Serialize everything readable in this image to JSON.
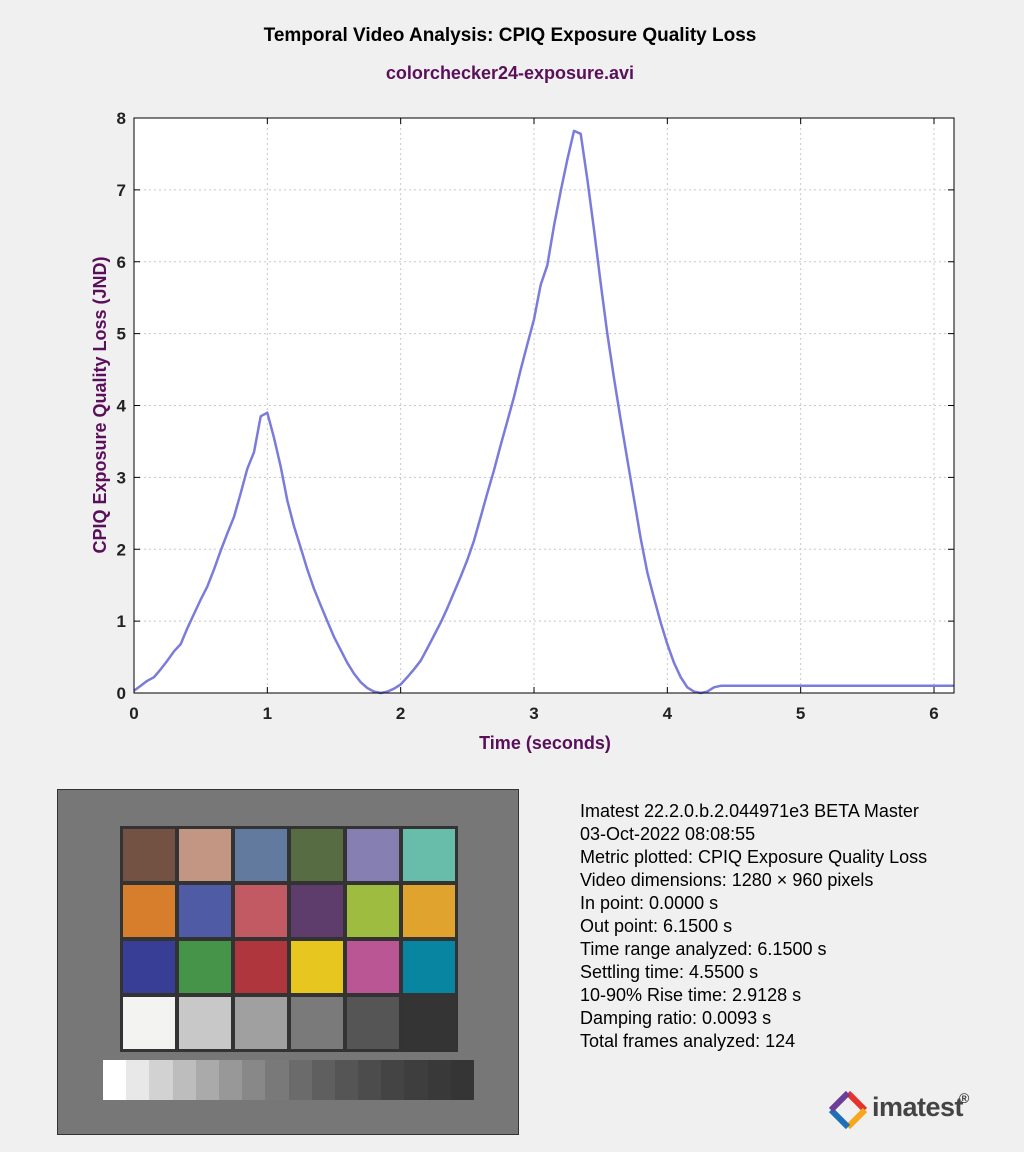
{
  "chart_data": {
    "type": "line",
    "title": "Temporal Video Analysis: CPIQ Exposure Quality Loss",
    "subtitle": "colorchecker24-exposure.avi",
    "xlabel": "Time (seconds)",
    "ylabel": "CPIQ Exposure Quality Loss (JND)",
    "xlim": [
      0,
      6.15
    ],
    "ylim": [
      0,
      8
    ],
    "xticks": [
      "0",
      "1",
      "2",
      "3",
      "4",
      "5",
      "6"
    ],
    "yticks": [
      "0",
      "1",
      "2",
      "3",
      "4",
      "5",
      "6",
      "7",
      "8"
    ],
    "grid": true,
    "series": [
      {
        "color": "#7b7bdc",
        "x": [
          0,
          0.05,
          0.1,
          0.15,
          0.2,
          0.25,
          0.3,
          0.35,
          0.4,
          0.45,
          0.5,
          0.55,
          0.6,
          0.65,
          0.7,
          0.75,
          0.8,
          0.85,
          0.9,
          0.95,
          1.0,
          1.05,
          1.1,
          1.15,
          1.2,
          1.25,
          1.3,
          1.35,
          1.4,
          1.45,
          1.5,
          1.55,
          1.6,
          1.65,
          1.7,
          1.75,
          1.8,
          1.85,
          1.9,
          1.95,
          2.0,
          2.05,
          2.1,
          2.15,
          2.2,
          2.25,
          2.3,
          2.35,
          2.4,
          2.45,
          2.5,
          2.55,
          2.6,
          2.65,
          2.7,
          2.75,
          2.8,
          2.85,
          2.9,
          2.95,
          3.0,
          3.05,
          3.1,
          3.15,
          3.2,
          3.25,
          3.3,
          3.35,
          3.4,
          3.45,
          3.5,
          3.55,
          3.6,
          3.65,
          3.7,
          3.75,
          3.8,
          3.85,
          3.9,
          3.95,
          4.0,
          4.05,
          4.1,
          4.15,
          4.2,
          4.25,
          4.3,
          4.35,
          4.4,
          4.45,
          4.5,
          4.55,
          4.6,
          5.0,
          5.5,
          6.0,
          6.15
        ],
        "y": [
          0.03,
          0.1,
          0.17,
          0.22,
          0.33,
          0.45,
          0.58,
          0.68,
          0.9,
          1.1,
          1.3,
          1.48,
          1.72,
          1.98,
          2.22,
          2.45,
          2.78,
          3.12,
          3.35,
          3.85,
          3.9,
          3.55,
          3.15,
          2.68,
          2.32,
          2.02,
          1.72,
          1.45,
          1.22,
          1.0,
          0.78,
          0.6,
          0.42,
          0.27,
          0.15,
          0.07,
          0.02,
          0.0,
          0.02,
          0.06,
          0.12,
          0.22,
          0.33,
          0.45,
          0.62,
          0.8,
          0.98,
          1.18,
          1.4,
          1.62,
          1.85,
          2.12,
          2.45,
          2.78,
          3.1,
          3.45,
          3.78,
          4.12,
          4.5,
          4.85,
          5.2,
          5.68,
          5.95,
          6.5,
          6.98,
          7.42,
          7.82,
          7.78,
          7.15,
          6.45,
          5.7,
          5.0,
          4.38,
          3.8,
          3.25,
          2.7,
          2.15,
          1.68,
          1.32,
          0.98,
          0.68,
          0.42,
          0.22,
          0.08,
          0.02,
          0.0,
          0.02,
          0.08,
          0.1,
          0.1,
          0.1,
          0.1,
          0.1,
          0.1,
          0.1,
          0.1,
          0.1
        ]
      }
    ]
  },
  "thumbnail": {
    "patches": [
      "#735244",
      "#c29682",
      "#627a9d",
      "#576c43",
      "#8580b1",
      "#67bdaa",
      "#d67e2c",
      "#505ba6",
      "#c15a63",
      "#5e3c6c",
      "#9dbc40",
      "#e0a32e",
      "#383d96",
      "#469449",
      "#af363c",
      "#e7c71f",
      "#bb5695",
      "#0885a1",
      "#f3f3f2",
      "#c8c8c8",
      "#a0a0a0",
      "#7a7a7a",
      "#555555",
      "#343434"
    ],
    "gray_strip": [
      "#ffffff",
      "#e8e8e8",
      "#d2d2d2",
      "#bdbdbd",
      "#aaaaaa",
      "#989898",
      "#888888",
      "#797979",
      "#6b6b6b",
      "#5f5f5f",
      "#555555",
      "#4c4c4c",
      "#444444",
      "#3e3e3e",
      "#393939",
      "#353535"
    ]
  },
  "info": {
    "lines": [
      "Imatest 22.2.0.b.2.044971e3 BETA Master",
      "03-Oct-2022 08:08:55",
      "Metric plotted: CPIQ Exposure Quality Loss",
      "Video dimensions: 1280 × 960 pixels",
      "In point: 0.0000 s",
      "Out point: 6.1500 s",
      "Time range analyzed: 6.1500 s",
      "Settling time: 4.5500 s",
      "10-90% Rise time: 2.9128 s",
      "Damping ratio: 0.0093 s",
      "Total frames analyzed: 124"
    ]
  },
  "logo": {
    "text": "imatest",
    "reg": "®",
    "icon": "imatest-logo-icon",
    "colors": [
      "#e5322d",
      "#f6a71b",
      "#1d6fb8",
      "#6b3f98"
    ]
  }
}
